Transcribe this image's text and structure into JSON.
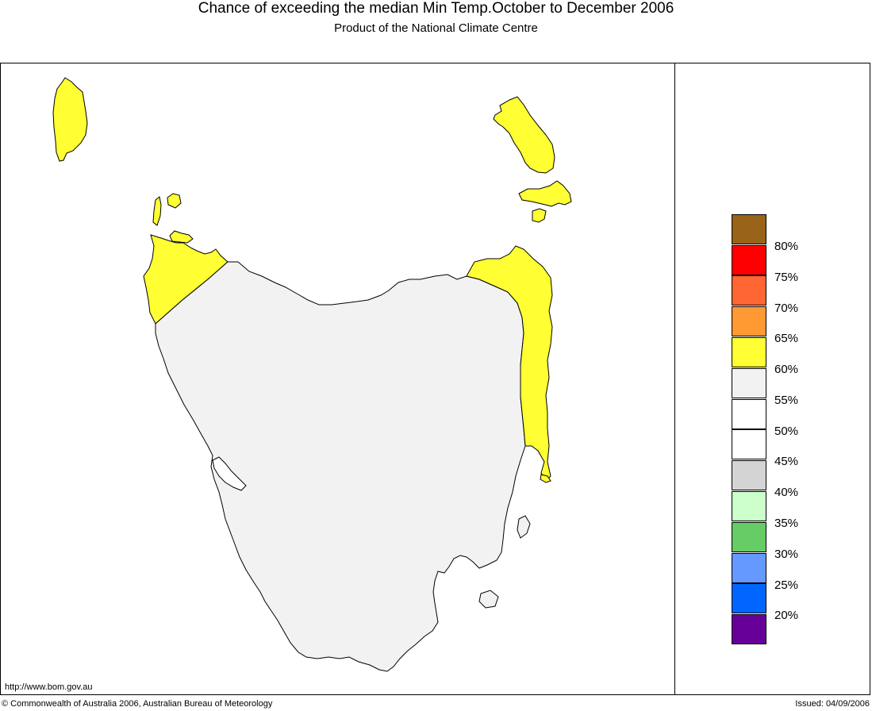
{
  "header": {
    "title": "Chance of exceeding the median Min Temp.October to December 2006",
    "subtitle": "Product of the National Climate Centre"
  },
  "map": {
    "region": "Tasmania",
    "colors": {
      "land_neutral": "#f2f2f2",
      "probability_60_65": "#ffff33",
      "outline": "#000000"
    }
  },
  "legend": {
    "swatches": [
      {
        "color": "#996319"
      },
      {
        "color": "#ff0000"
      },
      {
        "color": "#ff6633"
      },
      {
        "color": "#ff9933"
      },
      {
        "color": "#ffff33"
      },
      {
        "color": "#f2f2f2"
      },
      {
        "color": "#ffffff"
      },
      {
        "color": "#ffffff"
      },
      {
        "color": "#d4d4d4"
      },
      {
        "color": "#ccffcc"
      },
      {
        "color": "#66cc66"
      },
      {
        "color": "#6699ff"
      },
      {
        "color": "#0066ff"
      },
      {
        "color": "#660099"
      }
    ],
    "labels": [
      "80%",
      "75%",
      "70%",
      "65%",
      "60%",
      "55%",
      "50%",
      "45%",
      "40%",
      "35%",
      "30%",
      "25%",
      "20%"
    ]
  },
  "footer": {
    "url": "http://www.bom.gov.au",
    "copyright": "© Commonwealth of Australia 2006, Australian Bureau of Meteorology",
    "issued": "Issued: 04/09/2006"
  }
}
